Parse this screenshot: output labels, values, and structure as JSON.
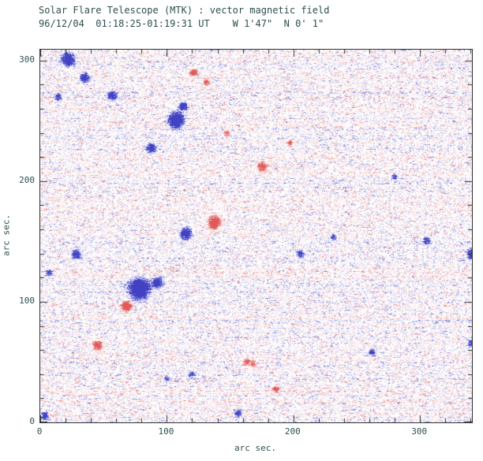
{
  "figure": {
    "title": "Solar Flare Telescope (MTK) : vector magnetic field",
    "subtitle": "96/12/04  01:18:25-01:19:31 UT    W 1'47\"  N 0' 1\"",
    "text_color": "#2f4f4f",
    "axis_color": "#303030"
  },
  "chart_data": {
    "type": "heatmap",
    "title": "Solar Flare Telescope (MTK) : vector magnetic field",
    "subtitle": "96/12/04  01:18:25-01:19:31 UT    W 1'47\"  N 0' 1\"",
    "xlabel": "arc sec.",
    "ylabel": "arc sec.",
    "xlim": [
      0,
      341
    ],
    "ylim": [
      0,
      309
    ],
    "x_ticks": [
      0,
      100,
      200,
      300
    ],
    "y_ticks": [
      0,
      100,
      200,
      300
    ],
    "minor_tick_step": 20,
    "grid": false,
    "legend": false,
    "colors": {
      "positive_polarity": "#e05a5a",
      "negative_polarity": "#5050c8",
      "background": "#ffffff"
    },
    "description": "Vector magnetogram map: blue speckle = negative polarity field, red speckle = positive polarity field, white = weak field; diffuse noise everywhere with localized flux concentrations",
    "features": [
      {
        "x": 22,
        "y": 301,
        "polarity": "negative",
        "radius": 5,
        "strength": 0.9
      },
      {
        "x": 35,
        "y": 286,
        "polarity": "negative",
        "radius": 4,
        "strength": 0.55
      },
      {
        "x": 57,
        "y": 271,
        "polarity": "negative",
        "radius": 4,
        "strength": 0.5
      },
      {
        "x": 14,
        "y": 270,
        "polarity": "negative",
        "radius": 3,
        "strength": 0.4
      },
      {
        "x": 107,
        "y": 251,
        "polarity": "negative",
        "radius": 6,
        "strength": 1.0
      },
      {
        "x": 113,
        "y": 262,
        "polarity": "negative",
        "radius": 3.5,
        "strength": 0.7
      },
      {
        "x": 121,
        "y": 290,
        "polarity": "positive",
        "radius": 3,
        "strength": 0.6
      },
      {
        "x": 131,
        "y": 282,
        "polarity": "positive",
        "radius": 2.5,
        "strength": 0.45
      },
      {
        "x": 87,
        "y": 228,
        "polarity": "negative",
        "radius": 4,
        "strength": 0.5
      },
      {
        "x": 147,
        "y": 240,
        "polarity": "positive",
        "radius": 2.5,
        "strength": 0.4
      },
      {
        "x": 175,
        "y": 212,
        "polarity": "positive",
        "radius": 4,
        "strength": 0.45
      },
      {
        "x": 197,
        "y": 232,
        "polarity": "positive",
        "radius": 2.5,
        "strength": 0.35
      },
      {
        "x": 115,
        "y": 157,
        "polarity": "negative",
        "radius": 4.5,
        "strength": 0.85
      },
      {
        "x": 137,
        "y": 166,
        "polarity": "positive",
        "radius": 4.5,
        "strength": 0.9
      },
      {
        "x": 78,
        "y": 111,
        "polarity": "negative",
        "radius": 8,
        "strength": 1.0
      },
      {
        "x": 92,
        "y": 116,
        "polarity": "negative",
        "radius": 4,
        "strength": 0.7
      },
      {
        "x": 68,
        "y": 97,
        "polarity": "positive",
        "radius": 4,
        "strength": 0.8
      },
      {
        "x": 28,
        "y": 140,
        "polarity": "negative",
        "radius": 4,
        "strength": 0.4
      },
      {
        "x": 7,
        "y": 124,
        "polarity": "negative",
        "radius": 3,
        "strength": 0.4
      },
      {
        "x": 205,
        "y": 140,
        "polarity": "negative",
        "radius": 3,
        "strength": 0.5
      },
      {
        "x": 231,
        "y": 154,
        "polarity": "negative",
        "radius": 2.5,
        "strength": 0.35
      },
      {
        "x": 305,
        "y": 151,
        "polarity": "negative",
        "radius": 3,
        "strength": 0.4
      },
      {
        "x": 341,
        "y": 140,
        "polarity": "negative",
        "radius": 4,
        "strength": 0.7
      },
      {
        "x": 341,
        "y": 66,
        "polarity": "negative",
        "radius": 3.5,
        "strength": 0.5
      },
      {
        "x": 280,
        "y": 204,
        "polarity": "negative",
        "radius": 2.5,
        "strength": 0.35
      },
      {
        "x": 45,
        "y": 64,
        "polarity": "positive",
        "radius": 4,
        "strength": 0.5
      },
      {
        "x": 120,
        "y": 40,
        "polarity": "negative",
        "radius": 3,
        "strength": 0.4
      },
      {
        "x": 163,
        "y": 50,
        "polarity": "positive",
        "radius": 3,
        "strength": 0.4
      },
      {
        "x": 186,
        "y": 28,
        "polarity": "positive",
        "radius": 3,
        "strength": 0.4
      },
      {
        "x": 156,
        "y": 8,
        "polarity": "negative",
        "radius": 3,
        "strength": 0.5
      },
      {
        "x": 3,
        "y": 6,
        "polarity": "negative",
        "radius": 3,
        "strength": 0.5
      },
      {
        "x": 262,
        "y": 58,
        "polarity": "negative",
        "radius": 3,
        "strength": 0.4
      },
      {
        "x": 168,
        "y": 49,
        "polarity": "positive",
        "radius": 2.5,
        "strength": 0.35
      },
      {
        "x": 100,
        "y": 36,
        "polarity": "negative",
        "radius": 2.5,
        "strength": 0.35
      }
    ]
  }
}
